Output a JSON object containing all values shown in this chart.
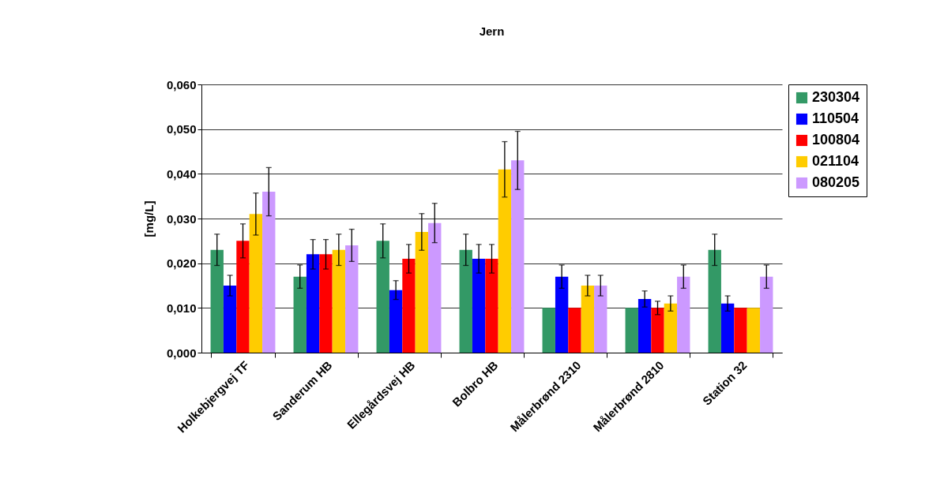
{
  "chart_data": {
    "type": "bar",
    "title": "Jern",
    "ylabel": "[mg/L]",
    "categories": [
      "Holkebjergvej TF",
      "Sanderum HB",
      "Ellegårdsvej HB",
      "Bolbro HB",
      "Målerbrønd 2310",
      "Målerbrønd 2810",
      "Station 32"
    ],
    "series": [
      {
        "name": "230304",
        "color": "#339966",
        "values": [
          0.023,
          0.017,
          0.025,
          0.023,
          0.01,
          0.01,
          0.023
        ],
        "errors": [
          0.0035,
          0.0026,
          0.0038,
          0.0035,
          null,
          null,
          0.0035
        ]
      },
      {
        "name": "110504",
        "color": "#0000ff",
        "values": [
          0.015,
          0.022,
          0.014,
          0.021,
          0.017,
          0.012,
          0.011
        ],
        "errors": [
          0.0023,
          0.0033,
          0.0021,
          0.0032,
          0.0026,
          0.0018,
          0.0017
        ]
      },
      {
        "name": "100804",
        "color": "#ff0000",
        "values": [
          0.025,
          0.022,
          0.021,
          0.021,
          0.01,
          0.01,
          0.01
        ],
        "errors": [
          0.0038,
          0.0033,
          0.0032,
          0.0032,
          null,
          0.0015,
          null
        ]
      },
      {
        "name": "021104",
        "color": "#ffcc00",
        "values": [
          0.031,
          0.023,
          0.027,
          0.041,
          0.015,
          0.011,
          0.01
        ],
        "errors": [
          0.0047,
          0.0035,
          0.0041,
          0.0062,
          0.0023,
          0.0017,
          null
        ]
      },
      {
        "name": "080205",
        "color": "#cc99ff",
        "values": [
          0.036,
          0.024,
          0.029,
          0.043,
          0.015,
          0.017,
          0.017
        ],
        "errors": [
          0.0054,
          0.0036,
          0.0044,
          0.0065,
          0.0023,
          0.0026,
          0.0026
        ]
      }
    ],
    "ylim": [
      0,
      0.06
    ],
    "yticks": [
      {
        "value": 0,
        "label": "0,000"
      },
      {
        "value": 0.01,
        "label": "0,010"
      },
      {
        "value": 0.02,
        "label": "0,020"
      },
      {
        "value": 0.03,
        "label": "0,030"
      },
      {
        "value": 0.04,
        "label": "0,040"
      },
      {
        "value": 0.05,
        "label": "0,050"
      },
      {
        "value": 0.06,
        "label": "0,060"
      }
    ],
    "grid": "y",
    "legend": "right"
  }
}
